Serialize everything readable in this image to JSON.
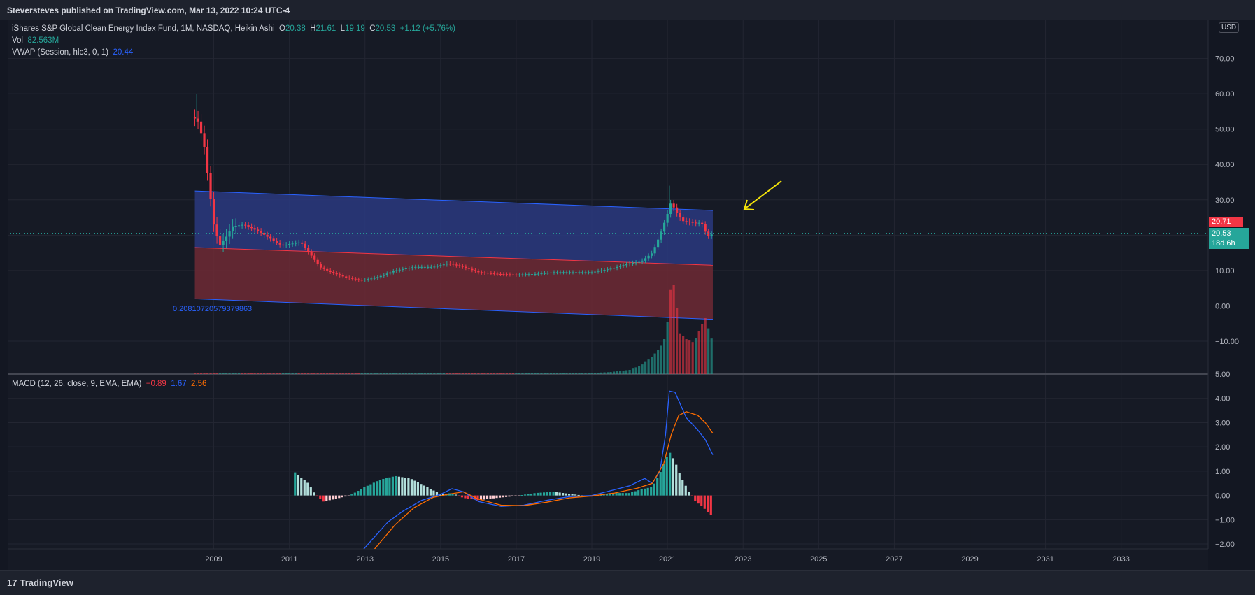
{
  "header": {
    "published": "Steversteves published on TradingView.com, Mar 13, 2022 10:24 UTC-4"
  },
  "footer": {
    "brand": "TradingView",
    "logo": "17"
  },
  "legend": {
    "symbol": "iShares S&P Global Clean Energy Index Fund, 1M, NASDAQ, Heikin Ashi",
    "o_label": "O",
    "o": "20.38",
    "h_label": "H",
    "h": "21.61",
    "l_label": "L",
    "l": "19.19",
    "c_label": "C",
    "c": "20.53",
    "change": "+1.12 (+5.76%)",
    "vol_label": "Vol",
    "vol": "82.563M",
    "vwap_label": "VWAP (Session, hlc3, 0, 1)",
    "vwap": "20.44",
    "macd_label": "MACD (12, 26, close, 9, EMA, EMA)",
    "macd_hist": "−0.89",
    "macd_line": "1.67",
    "macd_signal": "2.56"
  },
  "currency": "USD",
  "price_tags": {
    "prev_close": "20.71",
    "last": "20.53",
    "countdown": "18d 6h"
  },
  "channel_label": "0.20810720579379863",
  "colors": {
    "up": "#26a69a",
    "down": "#f23645",
    "macd": "#2962ff",
    "signal": "#ff6d00",
    "upper_band": "#2a3a80",
    "lower_band": "#6e2a35",
    "arrow": "#f5e50a"
  },
  "chart_data": {
    "type": "candlestick",
    "price_axis": {
      "ticks": [
        "70.00",
        "60.00",
        "50.00",
        "40.00",
        "30.00",
        "20.00",
        "10.00",
        "0.00",
        "−10.00"
      ],
      "values": [
        70,
        60,
        50,
        40,
        30,
        20,
        10,
        0,
        -10
      ],
      "range": [
        -19.3,
        81
      ]
    },
    "macd_axis": {
      "ticks": [
        "5.00",
        "4.00",
        "3.00",
        "2.00",
        "1.00",
        "0.00",
        "−1.00",
        "−2.00"
      ],
      "values": [
        5,
        4,
        3,
        2,
        1,
        0,
        -1,
        -2
      ],
      "range": [
        -2.2,
        5.0
      ]
    },
    "x_axis": {
      "ticks": [
        "2009",
        "2011",
        "2013",
        "2015",
        "2017",
        "2019",
        "2021",
        "2023",
        "2025",
        "2027",
        "2029",
        "2031",
        "2033"
      ],
      "values": [
        2009,
        2011,
        2013,
        2015,
        2017,
        2019,
        2021,
        2023,
        2025,
        2027,
        2029,
        2031,
        2033
      ],
      "range": [
        2003.55,
        2035.3
      ]
    },
    "price_keypoints": [
      [
        2008.5,
        53
      ],
      [
        2008.6,
        52
      ],
      [
        2008.75,
        45
      ],
      [
        2008.85,
        36
      ],
      [
        2009.0,
        23
      ],
      [
        2009.15,
        17
      ],
      [
        2009.3,
        19
      ],
      [
        2009.5,
        22.5
      ],
      [
        2009.8,
        23
      ],
      [
        2010.2,
        21
      ],
      [
        2010.5,
        19
      ],
      [
        2010.8,
        17
      ],
      [
        2011.0,
        17.5
      ],
      [
        2011.3,
        18
      ],
      [
        2011.6,
        14
      ],
      [
        2011.8,
        11
      ],
      [
        2012.1,
        9.5
      ],
      [
        2012.5,
        8
      ],
      [
        2012.9,
        7.2
      ],
      [
        2013.3,
        8
      ],
      [
        2013.8,
        10
      ],
      [
        2014.3,
        11
      ],
      [
        2014.8,
        11
      ],
      [
        2015.2,
        12
      ],
      [
        2015.6,
        11
      ],
      [
        2016.0,
        9.5
      ],
      [
        2016.5,
        9
      ],
      [
        2017.0,
        8.8
      ],
      [
        2017.5,
        9
      ],
      [
        2018.0,
        9.5
      ],
      [
        2018.5,
        9.5
      ],
      [
        2019.0,
        9.5
      ],
      [
        2019.5,
        10.5
      ],
      [
        2020.0,
        12
      ],
      [
        2020.3,
        12.5
      ],
      [
        2020.6,
        15
      ],
      [
        2020.8,
        20
      ],
      [
        2021.0,
        26
      ],
      [
        2021.1,
        29.5
      ],
      [
        2021.2,
        27
      ],
      [
        2021.4,
        24
      ],
      [
        2021.7,
        23.5
      ],
      [
        2021.9,
        23.5
      ],
      [
        2022.0,
        21
      ],
      [
        2022.1,
        19.5
      ],
      [
        2022.2,
        20.53
      ]
    ],
    "volume_keypoints": [
      [
        2008.5,
        0.2
      ],
      [
        2019.0,
        0.3
      ],
      [
        2019.5,
        0.6
      ],
      [
        2020.0,
        1.2
      ],
      [
        2020.3,
        2.5
      ],
      [
        2020.6,
        5
      ],
      [
        2020.9,
        9
      ],
      [
        2021.0,
        15
      ],
      [
        2021.08,
        24
      ],
      [
        2021.2,
        26
      ],
      [
        2021.3,
        12
      ],
      [
        2021.5,
        10
      ],
      [
        2021.7,
        9
      ],
      [
        2021.9,
        14
      ],
      [
        2022.0,
        16
      ],
      [
        2022.2,
        9
      ]
    ],
    "volume_scale_max": 26,
    "regression_channel": {
      "upper": [
        [
          2008.5,
          32.5
        ],
        [
          2022.2,
          27
        ]
      ],
      "mid": [
        [
          2008.5,
          16.5
        ],
        [
          2022.2,
          11.5
        ]
      ],
      "lower": [
        [
          2008.5,
          2.0
        ],
        [
          2022.2,
          -3.8
        ]
      ]
    },
    "macd_keypoints": [
      [
        2012.3,
        -3.5
      ],
      [
        2012.8,
        -2.5
      ],
      [
        2013.2,
        -1.8
      ],
      [
        2013.6,
        -1.1
      ],
      [
        2014.0,
        -0.65
      ],
      [
        2014.5,
        -0.2
      ],
      [
        2015.0,
        0.05
      ],
      [
        2015.3,
        0.28
      ],
      [
        2015.6,
        0.15
      ],
      [
        2016.0,
        -0.25
      ],
      [
        2016.6,
        -0.45
      ],
      [
        2017.2,
        -0.4
      ],
      [
        2017.8,
        -0.2
      ],
      [
        2018.4,
        -0.05
      ],
      [
        2019.0,
        0.0
      ],
      [
        2019.5,
        0.2
      ],
      [
        2020.0,
        0.4
      ],
      [
        2020.4,
        0.7
      ],
      [
        2020.6,
        0.5
      ],
      [
        2020.8,
        1.0
      ],
      [
        2020.95,
        2.5
      ],
      [
        2021.05,
        4.3
      ],
      [
        2021.2,
        4.25
      ],
      [
        2021.5,
        3.2
      ],
      [
        2021.8,
        2.7
      ],
      [
        2022.0,
        2.3
      ],
      [
        2022.2,
        1.67
      ]
    ],
    "signal_keypoints": [
      [
        2012.6,
        -3.5
      ],
      [
        2013.2,
        -2.3
      ],
      [
        2013.8,
        -1.2
      ],
      [
        2014.3,
        -0.5
      ],
      [
        2014.8,
        -0.08
      ],
      [
        2015.2,
        0.05
      ],
      [
        2015.6,
        0.15
      ],
      [
        2016.0,
        -0.15
      ],
      [
        2016.6,
        -0.4
      ],
      [
        2017.2,
        -0.42
      ],
      [
        2017.8,
        -0.28
      ],
      [
        2018.4,
        -0.1
      ],
      [
        2019.0,
        -0.02
      ],
      [
        2019.6,
        0.1
      ],
      [
        2020.2,
        0.3
      ],
      [
        2020.6,
        0.5
      ],
      [
        2020.9,
        1.3
      ],
      [
        2021.1,
        2.5
      ],
      [
        2021.3,
        3.3
      ],
      [
        2021.5,
        3.45
      ],
      [
        2021.8,
        3.3
      ],
      [
        2022.0,
        3.0
      ],
      [
        2022.2,
        2.56
      ]
    ],
    "hist_keypoints": [
      [
        2011.15,
        0.95
      ],
      [
        2011.5,
        0.5
      ],
      [
        2011.7,
        0.0
      ],
      [
        2011.9,
        -0.25
      ],
      [
        2012.2,
        -0.15
      ],
      [
        2012.6,
        0.0
      ],
      [
        2013.0,
        0.35
      ],
      [
        2013.4,
        0.65
      ],
      [
        2013.8,
        0.8
      ],
      [
        2014.2,
        0.7
      ],
      [
        2014.7,
        0.3
      ],
      [
        2015.0,
        0.05
      ],
      [
        2015.3,
        0.1
      ],
      [
        2015.6,
        -0.1
      ],
      [
        2016.0,
        -0.2
      ],
      [
        2016.5,
        -0.1
      ],
      [
        2017.0,
        -0.02
      ],
      [
        2017.5,
        0.1
      ],
      [
        2018.0,
        0.15
      ],
      [
        2018.5,
        0.05
      ],
      [
        2019.0,
        -0.05
      ],
      [
        2019.5,
        0.1
      ],
      [
        2020.0,
        0.1
      ],
      [
        2020.3,
        0.25
      ],
      [
        2020.6,
        0.35
      ],
      [
        2020.8,
        0.9
      ],
      [
        2020.95,
        1.5
      ],
      [
        2021.05,
        1.8
      ],
      [
        2021.2,
        1.4
      ],
      [
        2021.35,
        0.8
      ],
      [
        2021.55,
        0.2
      ],
      [
        2021.75,
        -0.25
      ],
      [
        2021.95,
        -0.5
      ],
      [
        2022.2,
        -0.89
      ]
    ]
  }
}
